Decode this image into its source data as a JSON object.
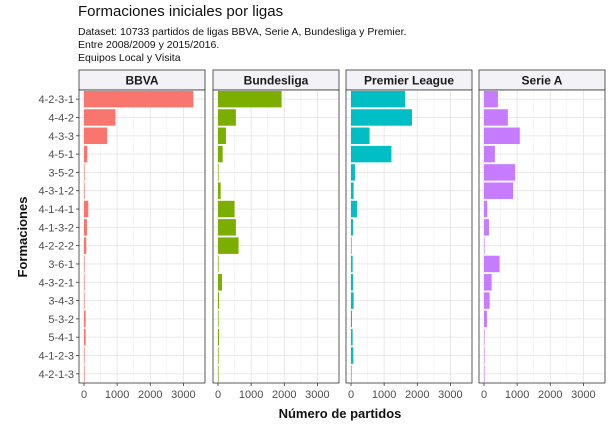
{
  "chart_data": {
    "type": "bar",
    "orientation": "horizontal",
    "facets": true,
    "title": "Formaciones iniciales por ligas",
    "subtitle_lines": [
      "Dataset: 10733 partidos de ligas BBVA, Serie A, Bundesliga y Premier.",
      "Entre 2008/2009 y 2015/2016.",
      "Equipos Local y Visita"
    ],
    "xlabel": "Número de partidos",
    "ylabel": "Formaciones",
    "xlim": [
      0,
      3500
    ],
    "xticks": [
      0,
      1000,
      2000,
      3000
    ],
    "xtick_labels": [
      "0",
      "1000",
      "2000",
      "3000"
    ],
    "grid": true,
    "legend": "none",
    "categories": [
      "4-2-3-1",
      "4-4-2",
      "4-3-3",
      "4-5-1",
      "3-5-2",
      "4-3-1-2",
      "4-1-4-1",
      "4-1-3-2",
      "4-2-2-2",
      "3-6-1",
      "4-3-2-1",
      "3-4-3",
      "5-3-2",
      "5-4-1",
      "4-1-2-3",
      "4-2-1-3"
    ],
    "series": [
      {
        "name": "BBVA",
        "color": "#f8766d",
        "values": [
          3300,
          950,
          700,
          100,
          10,
          20,
          130,
          90,
          70,
          5,
          10,
          10,
          50,
          50,
          10,
          5
        ]
      },
      {
        "name": "Bundesliga",
        "color": "#7cae00",
        "values": [
          1920,
          540,
          240,
          140,
          10,
          80,
          500,
          540,
          620,
          5,
          120,
          30,
          10,
          30,
          20,
          5
        ]
      },
      {
        "name": "Premier League",
        "color": "#00bfc4",
        "values": [
          1630,
          1840,
          560,
          1220,
          120,
          80,
          180,
          60,
          10,
          50,
          60,
          80,
          30,
          50,
          70,
          10
        ]
      },
      {
        "name": "Serie A",
        "color": "#c77cff",
        "values": [
          420,
          720,
          1080,
          330,
          940,
          880,
          100,
          150,
          10,
          470,
          230,
          170,
          90,
          5,
          10,
          5
        ]
      }
    ]
  }
}
